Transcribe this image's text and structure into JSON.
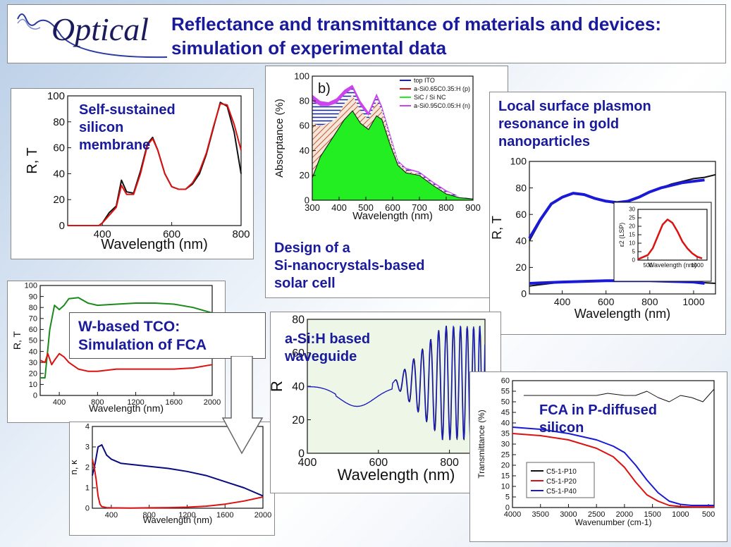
{
  "header": {
    "logo_text": "Optical",
    "title": "Reflectance and transmittance of  materials and devices: simulation of experimental data"
  },
  "captions": {
    "membrane": "Self-sustained\nsilicon\nmembrane",
    "solar": "Design of a\nSi-nanocrystals-based\nsolar cell",
    "plasmon": "Local surface plasmon\nresonance in gold\nnanoparticles",
    "tco": "W-based TCO:\nSimulation of FCA",
    "waveguide": "a-Si:H based\nwaveguide",
    "fca": "FCA in P-diffused\nsilicon"
  },
  "colors": {
    "caption": "#1a1a9c",
    "red": "#dd1111",
    "black": "#111111",
    "blue": "#1a1ad6",
    "green": "#1a8a1a",
    "bright_green": "#22ee22",
    "purple": "#cc44ee",
    "navy": "#0b0b80"
  },
  "chart_data": [
    {
      "id": "membrane",
      "type": "line",
      "xlabel": "Wavelength (nm)",
      "ylabel": "R, T",
      "xlim": [
        300,
        800
      ],
      "ylim": [
        0,
        100
      ],
      "xticks": [
        400,
        600,
        800
      ],
      "yticks": [
        0,
        20,
        40,
        60,
        80,
        100
      ],
      "series": [
        {
          "color": "black",
          "x": [
            300,
            390,
            400,
            420,
            440,
            455,
            470,
            490,
            510,
            530,
            545,
            560,
            580,
            600,
            620,
            640,
            660,
            680,
            700,
            720,
            740,
            760,
            780,
            800
          ],
          "y": [
            0,
            0,
            2,
            10,
            15,
            35,
            26,
            25,
            42,
            63,
            68,
            58,
            40,
            30,
            28,
            28,
            32,
            40,
            55,
            75,
            95,
            92,
            72,
            40
          ]
        },
        {
          "color": "red",
          "x": [
            300,
            390,
            400,
            420,
            440,
            455,
            470,
            490,
            510,
            530,
            545,
            560,
            580,
            600,
            620,
            640,
            660,
            680,
            700,
            720,
            740,
            760,
            780,
            800
          ],
          "y": [
            0,
            0,
            2,
            8,
            14,
            31,
            24,
            24,
            40,
            62,
            67,
            58,
            40,
            30,
            28,
            28,
            33,
            42,
            56,
            76,
            94,
            93,
            78,
            58
          ]
        }
      ]
    },
    {
      "id": "solar",
      "type": "area",
      "panel_label": "b)",
      "xlabel": "Wavelength (nm)",
      "ylabel": "Absorptance (%)",
      "xlim": [
        300,
        900
      ],
      "ylim": [
        0,
        100
      ],
      "xticks": [
        300,
        400,
        500,
        600,
        700,
        800,
        900
      ],
      "yticks": [
        0,
        20,
        40,
        60,
        80,
        100
      ],
      "legend": [
        "top ITO",
        "a-Si0.65C0.35:H (p)",
        "SiC / Si NC",
        "a-Si0.95C0.05:H (n)"
      ],
      "x": [
        300,
        330,
        360,
        390,
        420,
        450,
        480,
        510,
        540,
        560,
        590,
        620,
        650,
        700,
        750,
        800,
        850,
        900
      ],
      "series": [
        {
          "name": "SiC / Si NC",
          "values": [
            18,
            35,
            45,
            55,
            65,
            72,
            62,
            57,
            68,
            65,
            45,
            28,
            22,
            20,
            12,
            5,
            2,
            1
          ]
        },
        {
          "name": "a-Si0.65C0.35:H (p)",
          "values": [
            62,
            60,
            62,
            66,
            78,
            85,
            72,
            65,
            80,
            72,
            50,
            30,
            24,
            21,
            13,
            6,
            2,
            1
          ]
        },
        {
          "name": "top ITO",
          "values": [
            80,
            76,
            76,
            78,
            85,
            90,
            76,
            68,
            83,
            74,
            52,
            31,
            25,
            22,
            14,
            7,
            3,
            1
          ]
        },
        {
          "name": "a-Si0.95C0.05:H (n)",
          "values": [
            85,
            80,
            79,
            82,
            89,
            93,
            80,
            71,
            86,
            76,
            54,
            32,
            26,
            23,
            15,
            8,
            3,
            1
          ]
        }
      ]
    },
    {
      "id": "plasmon",
      "type": "line",
      "xlabel": "Wavelength (nm)",
      "ylabel": "R, T",
      "xlim": [
        250,
        1100
      ],
      "ylim": [
        0,
        100
      ],
      "xticks": [
        400,
        600,
        800,
        1000
      ],
      "yticks": [
        0,
        20,
        40,
        60,
        80,
        100
      ],
      "series": [
        {
          "color": "black",
          "x": [
            250,
            300,
            350,
            400,
            450,
            500,
            550,
            600,
            650,
            700,
            750,
            800,
            850,
            900,
            950,
            1000,
            1050,
            1100
          ],
          "y": [
            40,
            55,
            68,
            73,
            76,
            75,
            72,
            70,
            68,
            70,
            73,
            77,
            80,
            83,
            85,
            87,
            88,
            90
          ]
        },
        {
          "color": "blue",
          "x": [
            250,
            300,
            350,
            400,
            450,
            500,
            550,
            600,
            650,
            700,
            750,
            800,
            850,
            900,
            950,
            1000,
            1050
          ],
          "y": [
            42,
            56,
            68,
            73,
            76,
            75,
            72,
            70,
            69,
            70,
            73,
            77,
            80,
            82,
            84,
            85,
            86
          ]
        },
        {
          "color": "black",
          "x": [
            250,
            400,
            600,
            800,
            1000,
            1100
          ],
          "y": [
            6,
            9,
            10,
            10,
            9,
            8
          ]
        },
        {
          "color": "blue",
          "x": [
            250,
            400,
            600,
            800,
            1000,
            1050
          ],
          "y": [
            8,
            9,
            10,
            10,
            9,
            8
          ]
        }
      ],
      "inset": {
        "xlabel": "Wavelength (nm)",
        "ylabel": "ε2 (LSP)",
        "xlim": [
          400,
          1100
        ],
        "ylim": [
          0,
          30
        ],
        "xticks": [
          500,
          1000
        ],
        "yticks": [
          0,
          5,
          10,
          15,
          20,
          25,
          30
        ],
        "x": [
          400,
          500,
          550,
          600,
          650,
          700,
          750,
          800,
          850,
          900,
          950,
          1000,
          1050
        ],
        "y": [
          0.5,
          3,
          7,
          14,
          21,
          24,
          22,
          17,
          11,
          7,
          4,
          2,
          1
        ]
      }
    },
    {
      "id": "tco",
      "type": "line",
      "xlabel": "Wavelength (nm)",
      "ylabel": "R, T",
      "xlim": [
        200,
        2000
      ],
      "ylim": [
        0,
        100
      ],
      "xticks": [
        400,
        800,
        1200,
        1600,
        2000
      ],
      "yticks": [
        0,
        10,
        20,
        30,
        40,
        50,
        60,
        70,
        80,
        90,
        100
      ],
      "series": [
        {
          "color": "green",
          "x": [
            200,
            250,
            300,
            350,
            400,
            450,
            500,
            600,
            700,
            800,
            1000,
            1200,
            1400,
            1600,
            1800,
            2000
          ],
          "y": [
            16,
            16,
            60,
            82,
            78,
            82,
            88,
            89,
            84,
            82,
            83,
            84,
            84,
            83,
            80,
            75
          ]
        },
        {
          "color": "red",
          "x": [
            200,
            250,
            280,
            320,
            350,
            400,
            450,
            500,
            600,
            700,
            800,
            1000,
            1200,
            1400,
            1600,
            1800,
            2000
          ],
          "y": [
            32,
            30,
            38,
            28,
            32,
            38,
            35,
            30,
            24,
            22,
            22,
            24,
            24,
            24,
            24,
            25,
            28
          ]
        }
      ]
    },
    {
      "id": "tco_nk",
      "type": "line",
      "xlabel": "Wavelength (nm)",
      "ylabel": "n, κ",
      "xlim": [
        200,
        2000
      ],
      "ylim": [
        0,
        4
      ],
      "xticks": [
        400,
        800,
        1200,
        1600,
        2000
      ],
      "yticks": [
        0,
        1,
        2,
        3,
        4
      ],
      "series": [
        {
          "color": "navy",
          "x": [
            200,
            230,
            260,
            300,
            350,
            400,
            500,
            600,
            800,
            1000,
            1200,
            1400,
            1600,
            1800,
            2000
          ],
          "y": [
            1.6,
            2.2,
            3.0,
            3.1,
            2.6,
            2.4,
            2.2,
            2.15,
            2.05,
            1.95,
            1.8,
            1.6,
            1.3,
            1.0,
            0.6
          ]
        },
        {
          "color": "red",
          "x": [
            200,
            220,
            240,
            260,
            280,
            300,
            350,
            400,
            600,
            800,
            1000,
            1200,
            1400,
            1600,
            1800,
            2000
          ],
          "y": [
            2.4,
            2.0,
            1.4,
            0.6,
            0.2,
            0.08,
            0.03,
            0.02,
            0.01,
            0.02,
            0.03,
            0.05,
            0.1,
            0.2,
            0.35,
            0.55
          ]
        }
      ]
    },
    {
      "id": "waveguide",
      "type": "line",
      "xlabel": "Wavelength (nm)",
      "ylabel": "R",
      "xlim": [
        400,
        900
      ],
      "ylim": [
        0,
        80
      ],
      "xticks": [
        400,
        600,
        800
      ],
      "yticks": [
        0,
        20,
        40,
        60,
        80
      ]
    },
    {
      "id": "fca",
      "type": "line",
      "xlabel": "Wavenumber (cm-1)",
      "ylabel": "Transmittance (%)",
      "xlim": [
        4000,
        400
      ],
      "ylim": [
        0,
        60
      ],
      "xticks": [
        4000,
        3500,
        3000,
        2500,
        2000,
        1500,
        1000,
        500
      ],
      "yticks": [
        0,
        5,
        10,
        15,
        20,
        25,
        30,
        35,
        40,
        45,
        50,
        55,
        60
      ],
      "legend": [
        "C5-1-P10",
        "C5-1-P20",
        "C5-1-P40"
      ],
      "series": [
        {
          "name": "C5-1-P10",
          "color": "black",
          "x": [
            3800,
            3500,
            3000,
            2500,
            2300,
            2000,
            1800,
            1600,
            1400,
            1200,
            1000,
            800,
            600,
            400
          ],
          "y": [
            53,
            53,
            53,
            53,
            54,
            53,
            53,
            55,
            52,
            50,
            53,
            52,
            50,
            56
          ]
        },
        {
          "name": "C5-1-P20",
          "color": "red",
          "x": [
            4000,
            3500,
            3000,
            2500,
            2200,
            2000,
            1800,
            1600,
            1400,
            1200,
            1000,
            800,
            600,
            400
          ],
          "y": [
            35,
            34,
            32,
            28,
            24,
            19,
            12,
            6,
            3,
            1,
            0.5,
            0.3,
            0.3,
            0.3
          ]
        },
        {
          "name": "C5-1-P40",
          "color": "blue",
          "x": [
            4000,
            3500,
            3000,
            2500,
            2200,
            2000,
            1800,
            1600,
            1400,
            1200,
            1000,
            800,
            600,
            400
          ],
          "y": [
            38,
            37,
            35,
            32,
            29,
            26,
            20,
            13,
            7,
            3,
            1.5,
            1,
            1,
            1
          ]
        }
      ]
    }
  ]
}
